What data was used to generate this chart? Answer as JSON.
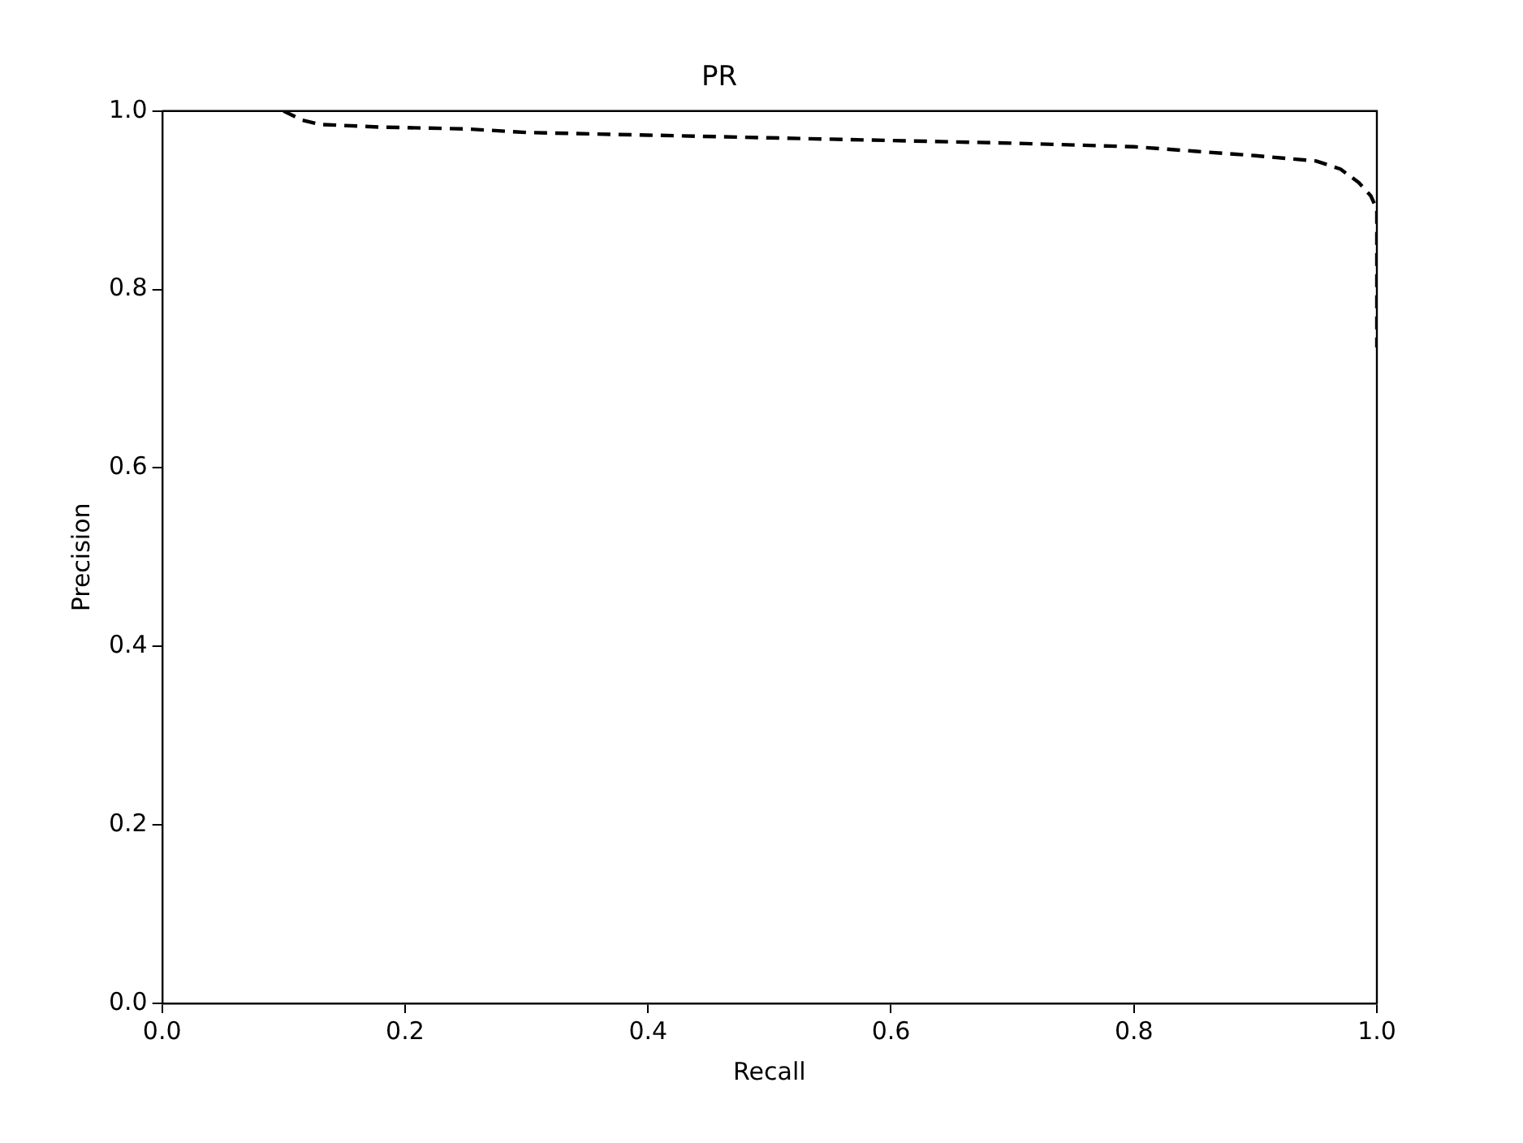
{
  "chart_data": {
    "type": "line",
    "title": "PR",
    "xlabel": "Recall",
    "ylabel": "Precision",
    "xlim": [
      0,
      1
    ],
    "ylim": [
      0,
      1
    ],
    "xticks": [
      {
        "value": 0,
        "label": "0.0"
      },
      {
        "value": 0.2,
        "label": "0.2"
      },
      {
        "value": 0.4,
        "label": "0.4"
      },
      {
        "value": 0.6,
        "label": "0.6"
      },
      {
        "value": 0.8,
        "label": "0.8"
      },
      {
        "value": 1,
        "label": "1.0"
      }
    ],
    "yticks": [
      {
        "value": 0,
        "label": "0.0"
      },
      {
        "value": 0.2,
        "label": "0.2"
      },
      {
        "value": 0.4,
        "label": "0.4"
      },
      {
        "value": 0.6,
        "label": "0.6"
      },
      {
        "value": 0.8,
        "label": "0.8"
      },
      {
        "value": 1,
        "label": "1.0"
      }
    ],
    "grid": false,
    "legend": false,
    "marker": "none",
    "line_style": "dashed",
    "series": [
      {
        "color": "#000000",
        "x": [
          0.1,
          0.115,
          0.13,
          0.18,
          0.25,
          0.3,
          0.4,
          0.5,
          0.6,
          0.7,
          0.8,
          0.85,
          0.9,
          0.95,
          0.97,
          0.985,
          0.995,
          1.0,
          1.0,
          1.0
        ],
        "values": [
          1.0,
          0.99,
          0.985,
          0.982,
          0.98,
          0.976,
          0.973,
          0.97,
          0.967,
          0.964,
          0.96,
          0.955,
          0.95,
          0.944,
          0.935,
          0.92,
          0.905,
          0.89,
          0.8,
          0.735
        ]
      }
    ]
  }
}
